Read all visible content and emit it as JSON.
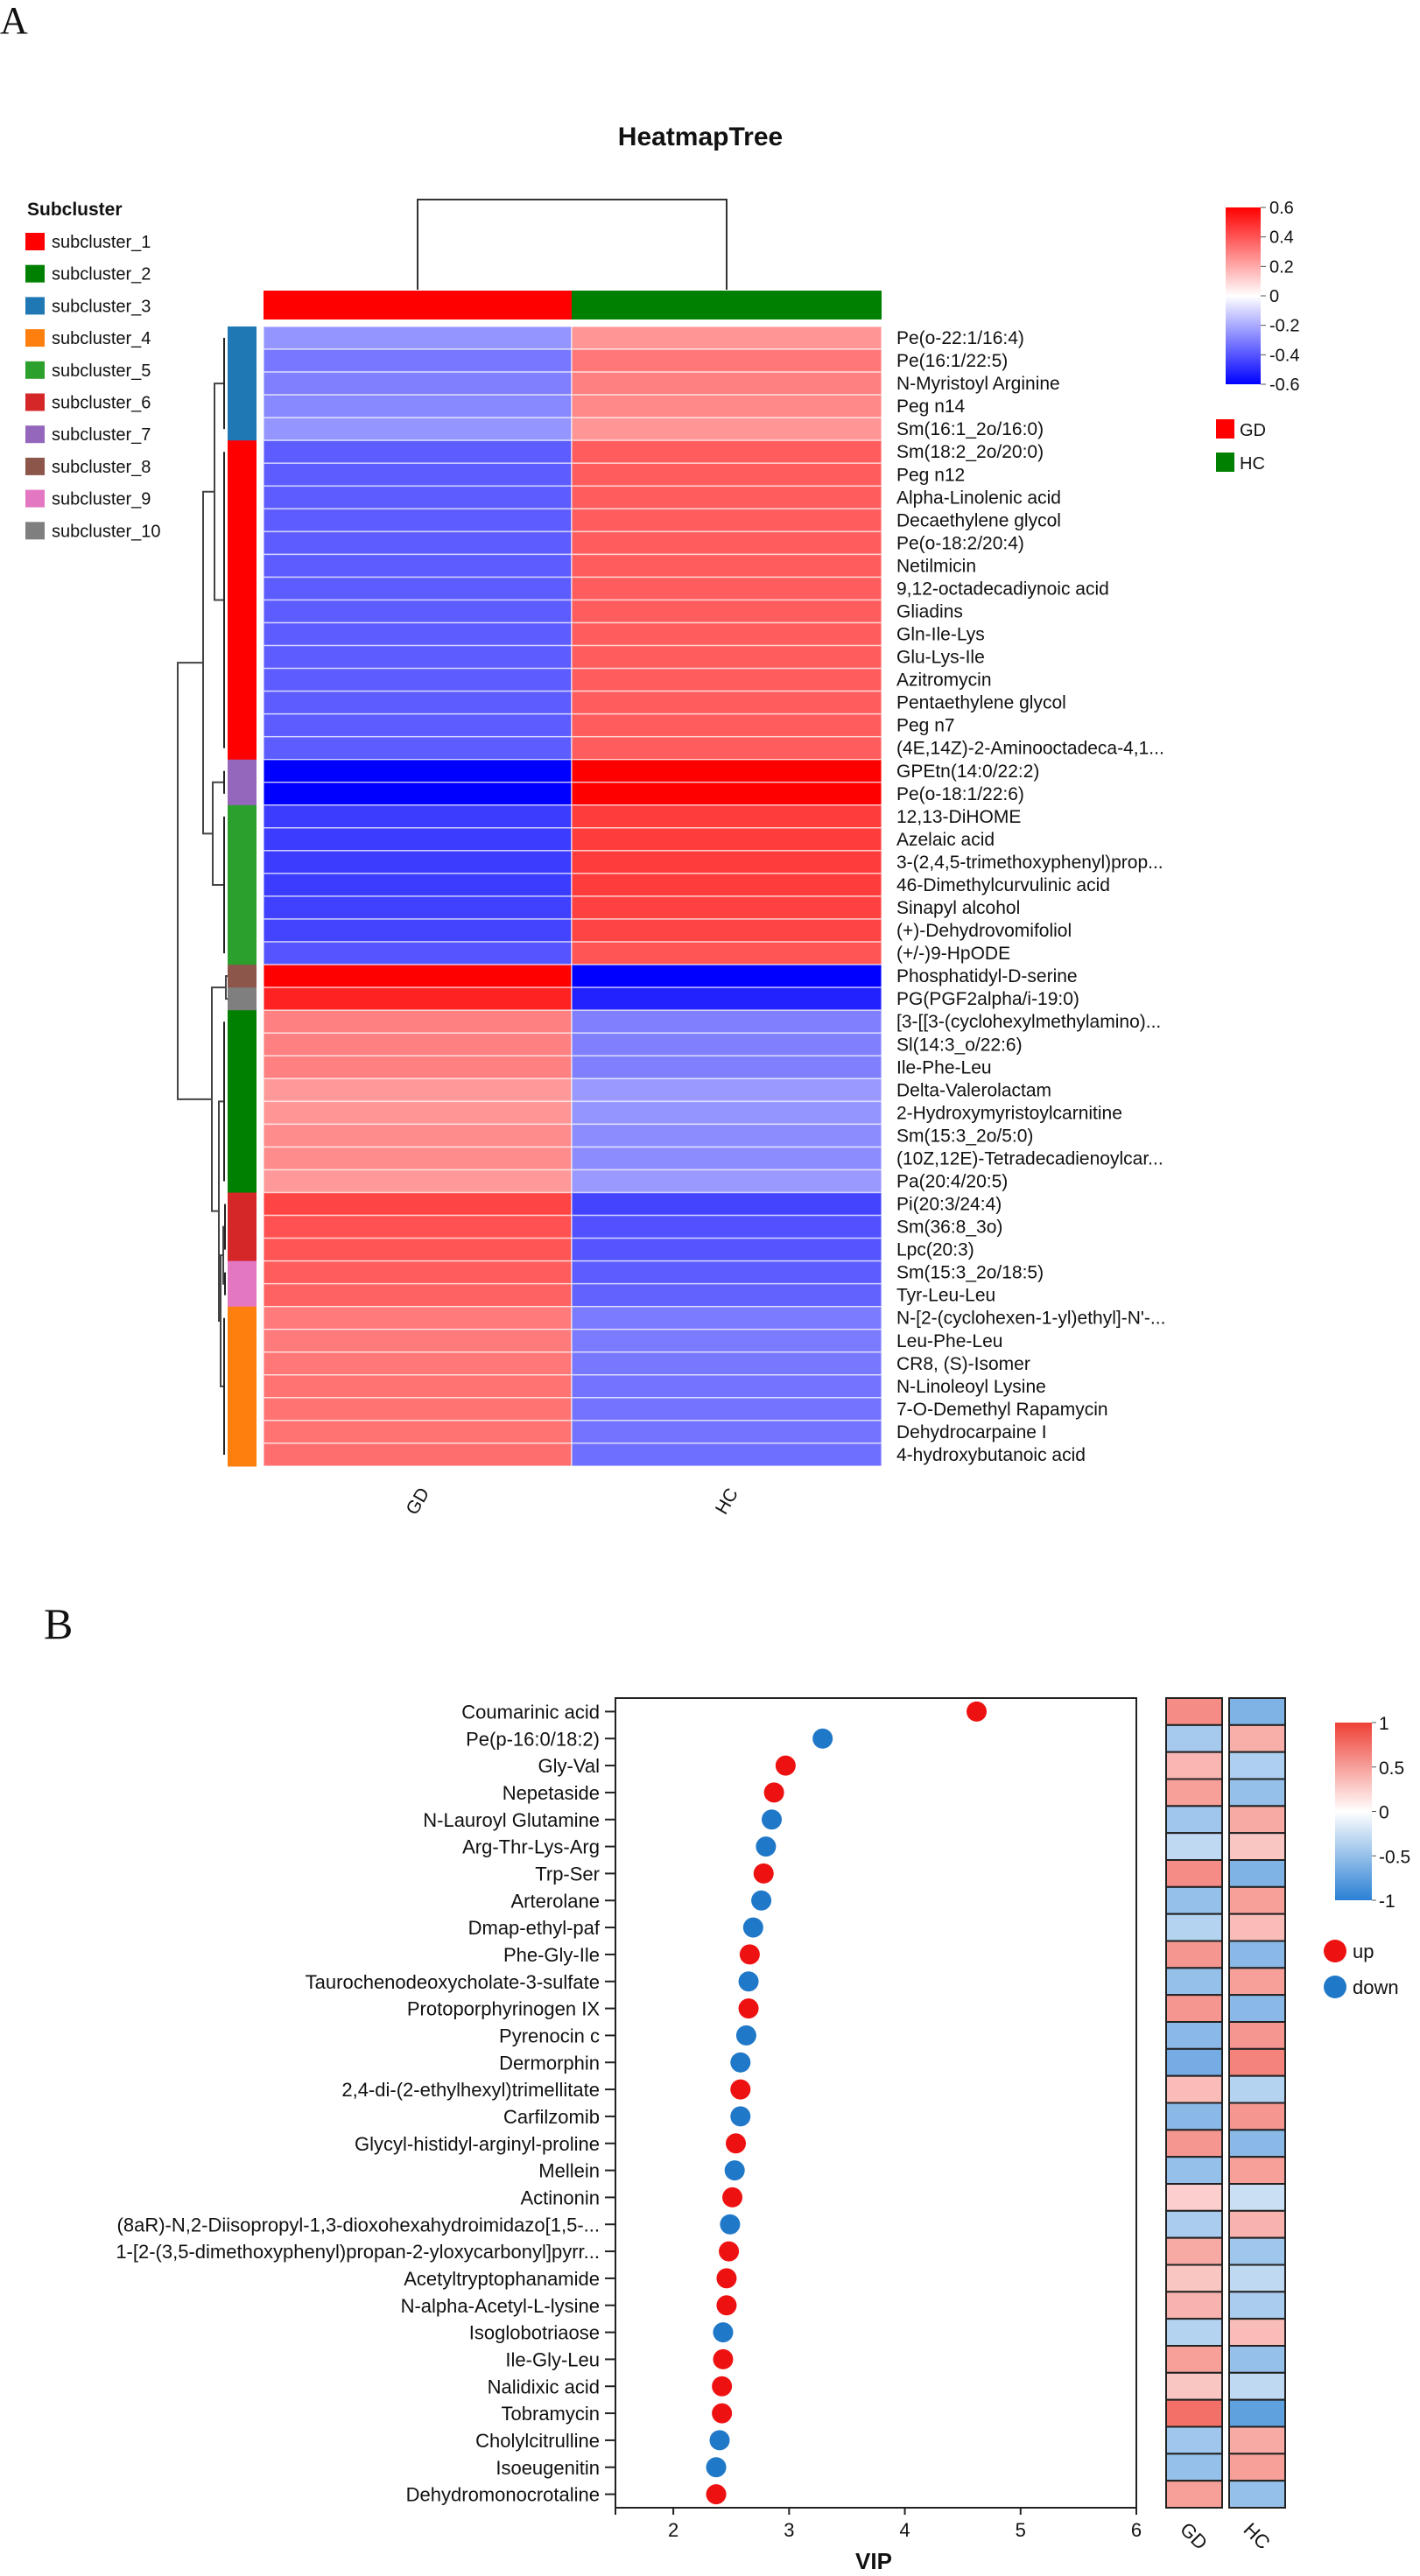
{
  "panel_labels": {
    "a": "A",
    "b": "B"
  },
  "chart_data": [
    {
      "type": "heatmap",
      "title": "HeatmapTree",
      "columns": [
        "GD",
        "HC"
      ],
      "column_colors": {
        "GD": "#ff0000",
        "HC": "#008000"
      },
      "group_legend": [
        {
          "label": "GD",
          "color": "#ff0000"
        },
        {
          "label": "HC",
          "color": "#008000"
        }
      ],
      "colorbar": {
        "min": -0.6,
        "max": 0.6,
        "ticks": [
          "0.6",
          "0.4",
          "0.2",
          "0",
          "-0.2",
          "-0.4",
          "-0.6"
        ],
        "low_color": "#0000ff",
        "mid_color": "#ffffff",
        "high_color": "#ff0000"
      },
      "subcluster_legend_title": "Subcluster",
      "subclusters": [
        {
          "label": "subcluster_1",
          "color": "#ff0000"
        },
        {
          "label": "subcluster_2",
          "color": "#008000"
        },
        {
          "label": "subcluster_3",
          "color": "#1f77b4"
        },
        {
          "label": "subcluster_4",
          "color": "#ff7f0e"
        },
        {
          "label": "subcluster_5",
          "color": "#2ca02c"
        },
        {
          "label": "subcluster_6",
          "color": "#d62728"
        },
        {
          "label": "subcluster_7",
          "color": "#9467bd"
        },
        {
          "label": "subcluster_8",
          "color": "#8c564b"
        },
        {
          "label": "subcluster_9",
          "color": "#e377c2"
        },
        {
          "label": "subcluster_10",
          "color": "#7f7f7f"
        }
      ],
      "rows": [
        {
          "name": "Pe(o-22:1/16:4)",
          "subcluster": 3,
          "GD": -0.25,
          "HC": 0.25
        },
        {
          "name": "Pe(16:1/22:5)",
          "subcluster": 3,
          "GD": -0.32,
          "HC": 0.32
        },
        {
          "name": "N-Myristoyl Arginine",
          "subcluster": 3,
          "GD": -0.3,
          "HC": 0.3
        },
        {
          "name": "Peg n14",
          "subcluster": 3,
          "GD": -0.28,
          "HC": 0.28
        },
        {
          "name": "Sm(16:1_2o/16:0)",
          "subcluster": 3,
          "GD": -0.25,
          "HC": 0.25
        },
        {
          "name": "Sm(18:2_2o/20:0)",
          "subcluster": 1,
          "GD": -0.38,
          "HC": 0.38
        },
        {
          "name": "Peg n12",
          "subcluster": 1,
          "GD": -0.38,
          "HC": 0.38
        },
        {
          "name": "Alpha-Linolenic acid",
          "subcluster": 1,
          "GD": -0.38,
          "HC": 0.38
        },
        {
          "name": "Decaethylene glycol",
          "subcluster": 1,
          "GD": -0.38,
          "HC": 0.38
        },
        {
          "name": "Pe(o-18:2/20:4)",
          "subcluster": 1,
          "GD": -0.38,
          "HC": 0.38
        },
        {
          "name": "Netilmicin",
          "subcluster": 1,
          "GD": -0.38,
          "HC": 0.38
        },
        {
          "name": "9,12-octadecadiynoic acid",
          "subcluster": 1,
          "GD": -0.38,
          "HC": 0.38
        },
        {
          "name": "Gliadins",
          "subcluster": 1,
          "GD": -0.38,
          "HC": 0.38
        },
        {
          "name": "Gln-Ile-Lys",
          "subcluster": 1,
          "GD": -0.38,
          "HC": 0.38
        },
        {
          "name": "Glu-Lys-Ile",
          "subcluster": 1,
          "GD": -0.38,
          "HC": 0.38
        },
        {
          "name": "Azitromycin",
          "subcluster": 1,
          "GD": -0.38,
          "HC": 0.38
        },
        {
          "name": "Pentaethylene glycol",
          "subcluster": 1,
          "GD": -0.38,
          "HC": 0.38
        },
        {
          "name": "Peg n7",
          "subcluster": 1,
          "GD": -0.38,
          "HC": 0.38
        },
        {
          "name": "(4E,14Z)-2-Aminooctadeca-4,1...",
          "subcluster": 1,
          "GD": -0.38,
          "HC": 0.38
        },
        {
          "name": "GPEtn(14:0/22:2)",
          "subcluster": 7,
          "GD": -0.6,
          "HC": 0.6
        },
        {
          "name": "Pe(o-18:1/22:6)",
          "subcluster": 7,
          "GD": -0.6,
          "HC": 0.6
        },
        {
          "name": "12,13-DiHOME",
          "subcluster": 5,
          "GD": -0.46,
          "HC": 0.46
        },
        {
          "name": "Azelaic acid",
          "subcluster": 5,
          "GD": -0.46,
          "HC": 0.46
        },
        {
          "name": "3-(2,4,5-trimethoxyphenyl)prop...",
          "subcluster": 5,
          "GD": -0.46,
          "HC": 0.46
        },
        {
          "name": "46-Dimethylcurvulinic acid",
          "subcluster": 5,
          "GD": -0.46,
          "HC": 0.46
        },
        {
          "name": "Sinapyl alcohol",
          "subcluster": 5,
          "GD": -0.45,
          "HC": 0.45
        },
        {
          "name": "(+)-Dehydrovomifoliol",
          "subcluster": 5,
          "GD": -0.44,
          "HC": 0.44
        },
        {
          "name": "(+/-)9-HpODE",
          "subcluster": 5,
          "GD": -0.4,
          "HC": 0.4
        },
        {
          "name": "Phosphatidyl-D-serine",
          "subcluster": 8,
          "GD": 0.6,
          "HC": -0.6
        },
        {
          "name": "PG(PGF2alpha/i-19:0)",
          "subcluster": 10,
          "GD": 0.52,
          "HC": -0.52
        },
        {
          "name": "[3-[[3-(cyclohexylmethylamino)...",
          "subcluster": 2,
          "GD": 0.3,
          "HC": -0.3
        },
        {
          "name": "Sl(14:3_o/22:6)",
          "subcluster": 2,
          "GD": 0.3,
          "HC": -0.3
        },
        {
          "name": "Ile-Phe-Leu",
          "subcluster": 2,
          "GD": 0.3,
          "HC": -0.3
        },
        {
          "name": "Delta-Valerolactam",
          "subcluster": 2,
          "GD": 0.24,
          "HC": -0.24
        },
        {
          "name": "2-Hydroxymyristoylcarnitine",
          "subcluster": 2,
          "GD": 0.25,
          "HC": -0.25
        },
        {
          "name": "Sm(15:3_2o/5:0)",
          "subcluster": 2,
          "GD": 0.27,
          "HC": -0.27
        },
        {
          "name": "(10Z,12E)-Tetradecadienoylcar...",
          "subcluster": 2,
          "GD": 0.27,
          "HC": -0.27
        },
        {
          "name": "Pa(20:4/20:5)",
          "subcluster": 2,
          "GD": 0.24,
          "HC": -0.24
        },
        {
          "name": "Pi(20:3/24:4)",
          "subcluster": 6,
          "GD": 0.44,
          "HC": -0.44
        },
        {
          "name": "Sm(36:8_3o)",
          "subcluster": 6,
          "GD": 0.41,
          "HC": -0.41
        },
        {
          "name": "Lpc(20:3)",
          "subcluster": 6,
          "GD": 0.4,
          "HC": -0.4
        },
        {
          "name": "Sm(15:3_2o/18:5)",
          "subcluster": 9,
          "GD": 0.38,
          "HC": -0.38
        },
        {
          "name": "Tyr-Leu-Leu",
          "subcluster": 9,
          "GD": 0.37,
          "HC": -0.37
        },
        {
          "name": "N-[2-(cyclohexen-1-yl)ethyl]-N'-...",
          "subcluster": 4,
          "GD": 0.31,
          "HC": -0.31
        },
        {
          "name": "Leu-Phe-Leu",
          "subcluster": 4,
          "GD": 0.31,
          "HC": -0.31
        },
        {
          "name": "CR8, (S)-Isomer",
          "subcluster": 4,
          "GD": 0.32,
          "HC": -0.32
        },
        {
          "name": "N-Linoleoyl Lysine",
          "subcluster": 4,
          "GD": 0.33,
          "HC": -0.33
        },
        {
          "name": "7-O-Demethyl Rapamycin",
          "subcluster": 4,
          "GD": 0.33,
          "HC": -0.33
        },
        {
          "name": "Dehydrocarpaine I",
          "subcluster": 4,
          "GD": 0.33,
          "HC": -0.33
        },
        {
          "name": "4-hydroxybutanoic acid",
          "subcluster": 4,
          "GD": 0.34,
          "HC": -0.34
        }
      ]
    },
    {
      "type": "scatter",
      "xlabel": "VIP",
      "xlim": [
        1.5,
        6
      ],
      "xticks": [
        "2",
        "3",
        "4",
        "5",
        "6"
      ],
      "legend": [
        {
          "label": "up",
          "color": "#ee1111"
        },
        {
          "label": "down",
          "color": "#1f78c8"
        }
      ],
      "heatmap_columns": [
        "GD",
        "HC"
      ],
      "colorbar": {
        "min": -1,
        "max": 1,
        "ticks": [
          "1",
          "0.5",
          "0",
          "-0.5",
          "-1"
        ],
        "low_color": "#2a80d4",
        "mid_color": "#ffffff",
        "high_color": "#ee4035"
      },
      "points": [
        {
          "name": "Coumarinic acid",
          "vip": 4.62,
          "dir": "up",
          "GD": 0.6,
          "HC": -0.6
        },
        {
          "name": "Pe(p-16:0/18:2)",
          "vip": 3.29,
          "dir": "down",
          "GD": -0.42,
          "HC": 0.42
        },
        {
          "name": "Gly-Val",
          "vip": 2.97,
          "dir": "up",
          "GD": 0.38,
          "HC": -0.38
        },
        {
          "name": "Nepetaside",
          "vip": 2.87,
          "dir": "up",
          "GD": 0.5,
          "HC": -0.5
        },
        {
          "name": "N-Lauroyl Glutamine",
          "vip": 2.85,
          "dir": "down",
          "GD": -0.45,
          "HC": 0.45
        },
        {
          "name": "Arg-Thr-Lys-Arg",
          "vip": 2.8,
          "dir": "down",
          "GD": -0.3,
          "HC": 0.3
        },
        {
          "name": "Trp-Ser",
          "vip": 2.78,
          "dir": "up",
          "GD": 0.6,
          "HC": -0.6
        },
        {
          "name": "Arterolane",
          "vip": 2.76,
          "dir": "down",
          "GD": -0.5,
          "HC": 0.5
        },
        {
          "name": "Dmap-ethyl-paf",
          "vip": 2.69,
          "dir": "down",
          "GD": -0.35,
          "HC": 0.35
        },
        {
          "name": "Phe-Gly-Ile",
          "vip": 2.66,
          "dir": "up",
          "GD": 0.55,
          "HC": -0.55
        },
        {
          "name": "Taurochenodeoxycholate-3-sulfate",
          "vip": 2.65,
          "dir": "down",
          "GD": -0.5,
          "HC": 0.5
        },
        {
          "name": "Protoporphyrinogen IX",
          "vip": 2.65,
          "dir": "up",
          "GD": 0.55,
          "HC": -0.55
        },
        {
          "name": "Pyrenocin c",
          "vip": 2.63,
          "dir": "down",
          "GD": -0.55,
          "HC": 0.55
        },
        {
          "name": "Dermorphin",
          "vip": 2.58,
          "dir": "down",
          "GD": -0.65,
          "HC": 0.65
        },
        {
          "name": "2,4-di-(2-ethylhexyl)trimellitate",
          "vip": 2.58,
          "dir": "up",
          "GD": 0.35,
          "HC": -0.35
        },
        {
          "name": "Carfilzomib",
          "vip": 2.58,
          "dir": "down",
          "GD": -0.55,
          "HC": 0.55
        },
        {
          "name": "Glycyl-histidyl-arginyl-proline",
          "vip": 2.54,
          "dir": "up",
          "GD": 0.55,
          "HC": -0.55
        },
        {
          "name": "Mellein",
          "vip": 2.53,
          "dir": "down",
          "GD": -0.5,
          "HC": 0.5
        },
        {
          "name": "Actinonin",
          "vip": 2.51,
          "dir": "up",
          "GD": 0.25,
          "HC": -0.25
        },
        {
          "name": "(8aR)-N,2-Diisopropyl-1,3-dioxohexahydroimidazo[1,5-...",
          "vip": 2.49,
          "dir": "down",
          "GD": -0.4,
          "HC": 0.4
        },
        {
          "name": "1-[2-(3,5-dimethoxyphenyl)propan-2-yloxycarbonyl]pyrr...",
          "vip": 2.48,
          "dir": "up",
          "GD": 0.45,
          "HC": -0.45
        },
        {
          "name": "Acetyltryptophanamide",
          "vip": 2.46,
          "dir": "up",
          "GD": 0.3,
          "HC": -0.3
        },
        {
          "name": "N-alpha-Acetyl-L-lysine",
          "vip": 2.46,
          "dir": "up",
          "GD": 0.4,
          "HC": -0.4
        },
        {
          "name": "Isoglobotriaose",
          "vip": 2.43,
          "dir": "down",
          "GD": -0.35,
          "HC": 0.35
        },
        {
          "name": "Ile-Gly-Leu",
          "vip": 2.43,
          "dir": "up",
          "GD": 0.5,
          "HC": -0.5
        },
        {
          "name": "Nalidixic acid",
          "vip": 2.42,
          "dir": "up",
          "GD": 0.3,
          "HC": -0.3
        },
        {
          "name": "Tobramycin",
          "vip": 2.42,
          "dir": "up",
          "GD": 0.75,
          "HC": -0.75
        },
        {
          "name": "Cholylcitrulline",
          "vip": 2.4,
          "dir": "down",
          "GD": -0.45,
          "HC": 0.45
        },
        {
          "name": "Isoeugenitin",
          "vip": 2.37,
          "dir": "down",
          "GD": -0.5,
          "HC": 0.5
        },
        {
          "name": "Dehydromonocrotaline",
          "vip": 2.37,
          "dir": "up",
          "GD": 0.5,
          "HC": -0.5
        }
      ]
    }
  ]
}
